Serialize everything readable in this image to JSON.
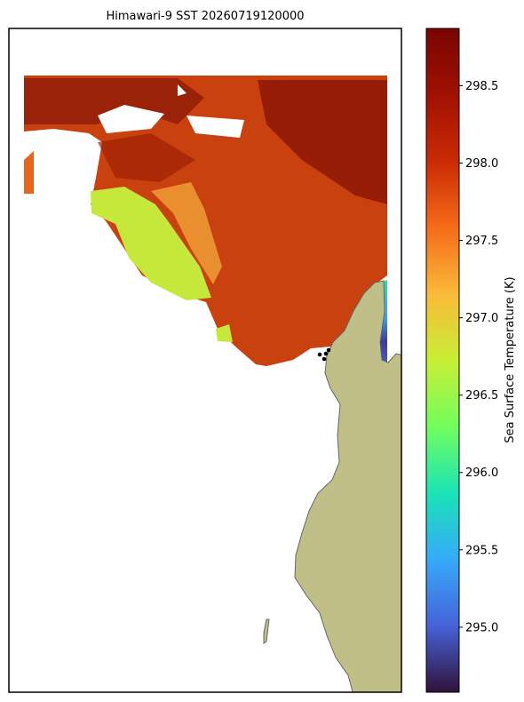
{
  "title": "Himawari-9 SST 20260719120000",
  "colorbar": {
    "label": "Sea Surface Temperature (K)",
    "lim": [
      294.58,
      298.87
    ],
    "ticks": [
      {
        "value": 295,
        "label": "295.0"
      },
      295.5,
      {
        "value": 296,
        "label": "296.0"
      },
      296.5,
      {
        "value": 297,
        "label": "297.0"
      },
      297.5,
      {
        "value": 298,
        "label": "298.0"
      },
      298.5
    ]
  }
}
